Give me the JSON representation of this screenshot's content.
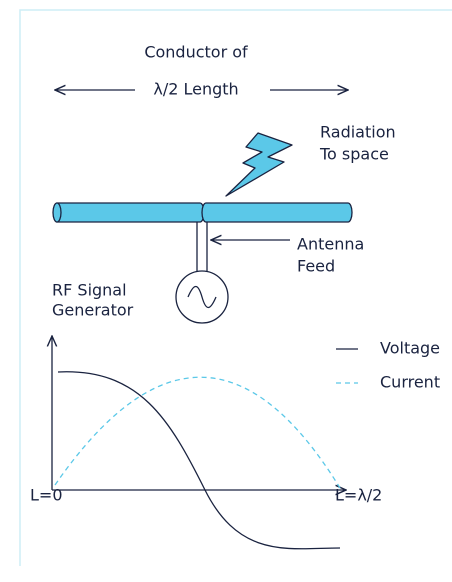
{
  "conductor": {
    "line1": "Conductor of",
    "line2": "λ/2 Length"
  },
  "radiation": {
    "line1": "Radiation",
    "line2": "To space"
  },
  "feed": {
    "line1": "Antenna",
    "line2": "Feed"
  },
  "generator": {
    "line1": "RF Signal",
    "line2": "Generator"
  },
  "legend": {
    "voltage": "Voltage",
    "current": "Current"
  },
  "axis": {
    "start": "L=0",
    "end": "L=λ/2"
  }
}
